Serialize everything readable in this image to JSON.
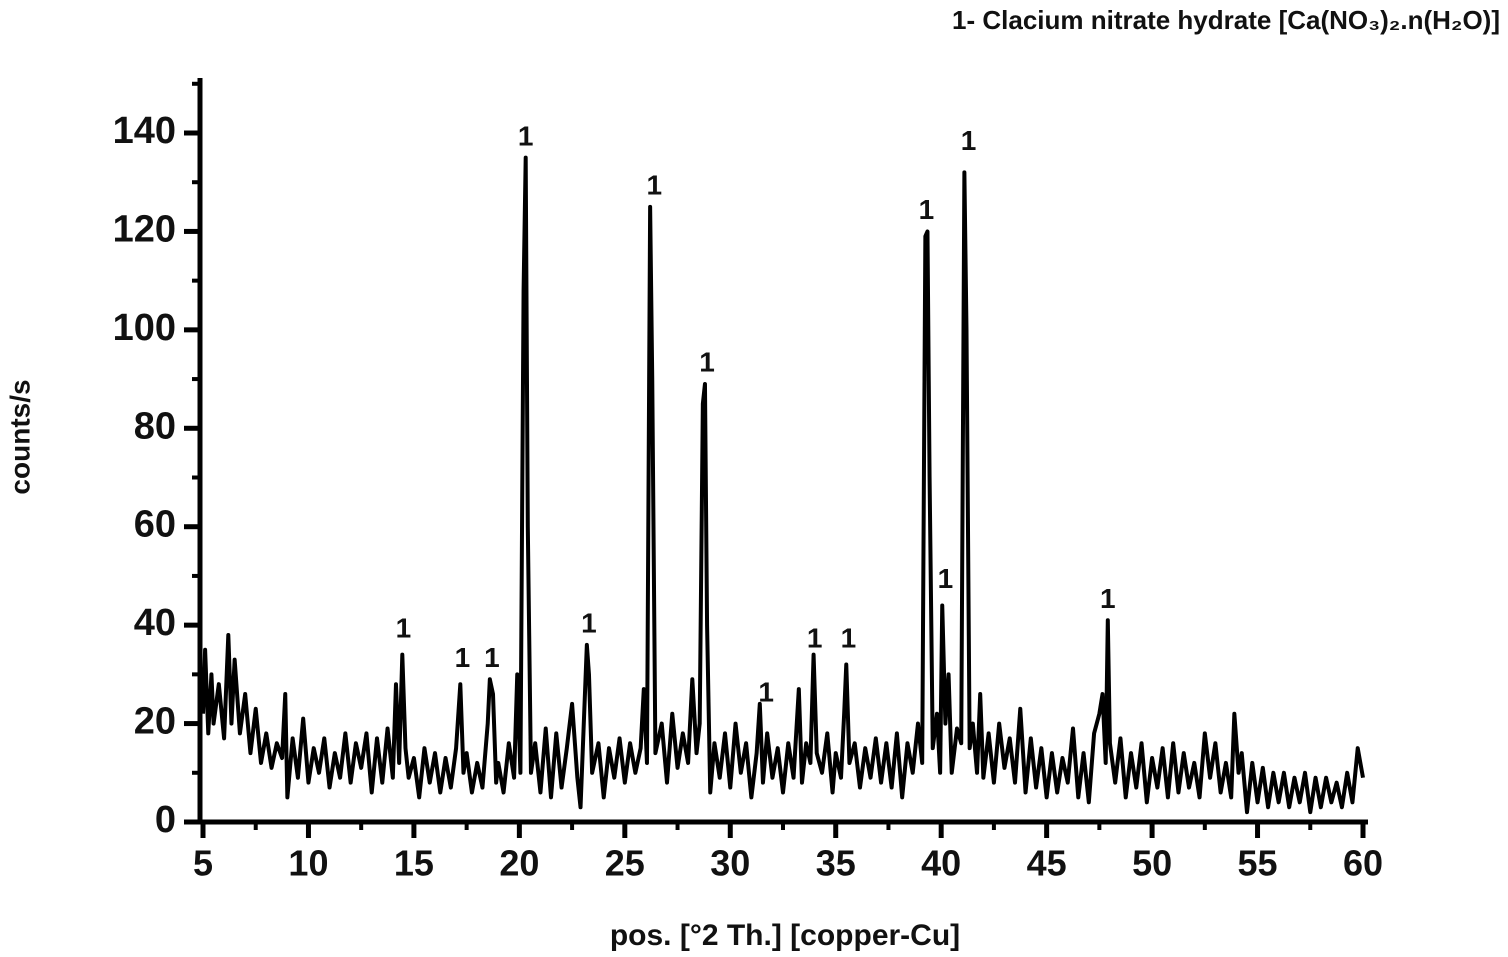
{
  "chart_data": {
    "type": "line",
    "title": "1- Clacium nitrate hydrate [Ca(NO₃)₂.n(H₂O)]",
    "xlabel": "pos. [°2 Th.] [copper-Cu]",
    "ylabel": "counts/s",
    "color": "#000000",
    "xlim": [
      5,
      60
    ],
    "ylim": [
      0,
      150
    ],
    "xticks": [
      5,
      10,
      15,
      20,
      25,
      30,
      35,
      40,
      45,
      50,
      55,
      60
    ],
    "yticks": [
      0,
      20,
      40,
      60,
      80,
      100,
      120,
      140
    ],
    "xminorticks": [
      7.5,
      12.5,
      17.5,
      22.5,
      27.5,
      32.5,
      37.5,
      42.5,
      47.5,
      52.5,
      57.5
    ],
    "yminorticks": [
      10,
      30,
      50,
      70,
      90,
      110,
      130,
      150
    ],
    "grid": false,
    "x": [
      5.0,
      5.1,
      5.25,
      5.4,
      5.5,
      5.75,
      6.0,
      6.2,
      6.35,
      6.5,
      6.75,
      7.0,
      7.25,
      7.5,
      7.75,
      8.0,
      8.25,
      8.5,
      8.75,
      8.9,
      9.0,
      9.25,
      9.5,
      9.75,
      10.0,
      10.25,
      10.5,
      10.75,
      11.0,
      11.25,
      11.5,
      11.75,
      12.0,
      12.25,
      12.5,
      12.75,
      13.0,
      13.25,
      13.5,
      13.75,
      14.0,
      14.15,
      14.3,
      14.45,
      14.6,
      14.75,
      15.0,
      15.25,
      15.5,
      15.75,
      16.0,
      16.25,
      16.5,
      16.75,
      17.0,
      17.2,
      17.35,
      17.5,
      17.75,
      18.0,
      18.25,
      18.5,
      18.6,
      18.75,
      18.9,
      19.0,
      19.25,
      19.5,
      19.75,
      19.9,
      20.05,
      20.2,
      20.3,
      20.4,
      20.55,
      20.75,
      21.0,
      21.25,
      21.5,
      21.75,
      22.0,
      22.25,
      22.5,
      22.75,
      22.9,
      23.0,
      23.2,
      23.3,
      23.45,
      23.75,
      24.0,
      24.25,
      24.5,
      24.75,
      25.0,
      25.25,
      25.5,
      25.75,
      25.9,
      26.05,
      26.2,
      26.3,
      26.45,
      26.75,
      27.0,
      27.25,
      27.5,
      27.75,
      28.0,
      28.2,
      28.4,
      28.55,
      28.7,
      28.8,
      28.9,
      29.05,
      29.25,
      29.5,
      29.75,
      30.0,
      30.25,
      30.5,
      30.75,
      31.0,
      31.25,
      31.4,
      31.55,
      31.75,
      32.0,
      32.25,
      32.5,
      32.75,
      33.0,
      33.25,
      33.4,
      33.6,
      33.8,
      33.95,
      34.1,
      34.35,
      34.6,
      34.85,
      35.0,
      35.25,
      35.4,
      35.5,
      35.65,
      35.9,
      36.15,
      36.4,
      36.65,
      36.9,
      37.15,
      37.4,
      37.65,
      37.9,
      38.15,
      38.4,
      38.65,
      38.9,
      39.1,
      39.25,
      39.35,
      39.45,
      39.6,
      39.8,
      39.95,
      40.05,
      40.2,
      40.35,
      40.5,
      40.75,
      40.95,
      41.1,
      41.2,
      41.35,
      41.5,
      41.7,
      41.85,
      42.0,
      42.25,
      42.5,
      42.75,
      43.0,
      43.25,
      43.5,
      43.75,
      44.0,
      44.25,
      44.5,
      44.75,
      45.0,
      45.25,
      45.5,
      45.75,
      46.0,
      46.25,
      46.5,
      46.75,
      47.0,
      47.25,
      47.5,
      47.65,
      47.8,
      47.9,
      48.0,
      48.25,
      48.5,
      48.75,
      49.0,
      49.25,
      49.5,
      49.75,
      50.0,
      50.25,
      50.5,
      50.75,
      51.0,
      51.25,
      51.5,
      51.75,
      52.0,
      52.25,
      52.5,
      52.75,
      53.0,
      53.25,
      53.5,
      53.75,
      53.9,
      54.1,
      54.25,
      54.5,
      54.75,
      55.0,
      55.25,
      55.5,
      55.75,
      56.0,
      56.25,
      56.5,
      56.75,
      57.0,
      57.25,
      57.5,
      57.75,
      58.0,
      58.25,
      58.5,
      58.75,
      59.0,
      59.25,
      59.5,
      59.75,
      60.0
    ],
    "values": [
      22,
      35,
      18,
      30,
      20,
      28,
      17,
      38,
      20,
      33,
      18,
      26,
      14,
      23,
      12,
      18,
      11,
      16,
      13,
      26,
      5,
      17,
      9,
      21,
      8,
      15,
      10,
      17,
      7,
      14,
      9,
      18,
      8,
      16,
      11,
      18,
      6,
      17,
      8,
      19,
      9,
      28,
      12,
      34,
      15,
      9,
      13,
      5,
      15,
      8,
      14,
      6,
      13,
      7,
      15,
      28,
      10,
      14,
      6,
      12,
      7,
      20,
      29,
      26,
      8,
      12,
      6,
      16,
      9,
      30,
      10,
      108,
      135,
      60,
      10,
      16,
      6,
      19,
      5,
      18,
      7,
      15,
      24,
      9,
      3,
      14,
      36,
      30,
      10,
      16,
      5,
      15,
      9,
      17,
      8,
      16,
      10,
      15,
      27,
      12,
      125,
      90,
      14,
      20,
      8,
      22,
      11,
      18,
      12,
      29,
      14,
      20,
      85,
      89,
      40,
      6,
      16,
      9,
      18,
      7,
      20,
      10,
      16,
      5,
      14,
      24,
      8,
      18,
      9,
      15,
      6,
      16,
      9,
      27,
      8,
      16,
      12,
      34,
      14,
      10,
      18,
      6,
      14,
      9,
      22,
      32,
      12,
      16,
      7,
      15,
      9,
      17,
      8,
      16,
      7,
      18,
      5,
      16,
      10,
      20,
      12,
      119,
      120,
      70,
      15,
      22,
      10,
      44,
      20,
      30,
      10,
      19,
      16,
      132,
      100,
      15,
      20,
      10,
      26,
      9,
      18,
      8,
      20,
      11,
      17,
      8,
      23,
      6,
      17,
      7,
      15,
      5,
      14,
      6,
      13,
      8,
      19,
      5,
      14,
      4,
      18,
      22,
      26,
      12,
      41,
      16,
      8,
      17,
      5,
      14,
      7,
      16,
      4,
      13,
      7,
      15,
      5,
      16,
      6,
      14,
      7,
      12,
      5,
      18,
      9,
      16,
      6,
      12,
      5,
      22,
      10,
      14,
      2,
      12,
      4,
      11,
      3,
      10,
      4,
      10,
      3,
      9,
      4,
      10,
      2,
      9,
      3,
      9,
      4,
      8,
      3,
      10,
      4,
      15,
      9
    ],
    "annotations": [
      {
        "text": "1",
        "x": 14.5,
        "y": 39
      },
      {
        "text": "1",
        "x": 17.3,
        "y": 33
      },
      {
        "text": "1",
        "x": 18.7,
        "y": 33
      },
      {
        "text": "1",
        "x": 20.3,
        "y": 139
      },
      {
        "text": "1",
        "x": 23.3,
        "y": 40
      },
      {
        "text": "1",
        "x": 26.4,
        "y": 129
      },
      {
        "text": "1",
        "x": 28.9,
        "y": 93
      },
      {
        "text": "1",
        "x": 31.7,
        "y": 26
      },
      {
        "text": "1",
        "x": 34.0,
        "y": 37
      },
      {
        "text": "1",
        "x": 35.6,
        "y": 37
      },
      {
        "text": "1",
        "x": 39.3,
        "y": 124
      },
      {
        "text": "1",
        "x": 40.2,
        "y": 49
      },
      {
        "text": "1",
        "x": 41.3,
        "y": 138
      },
      {
        "text": "1",
        "x": 47.9,
        "y": 45
      }
    ]
  }
}
